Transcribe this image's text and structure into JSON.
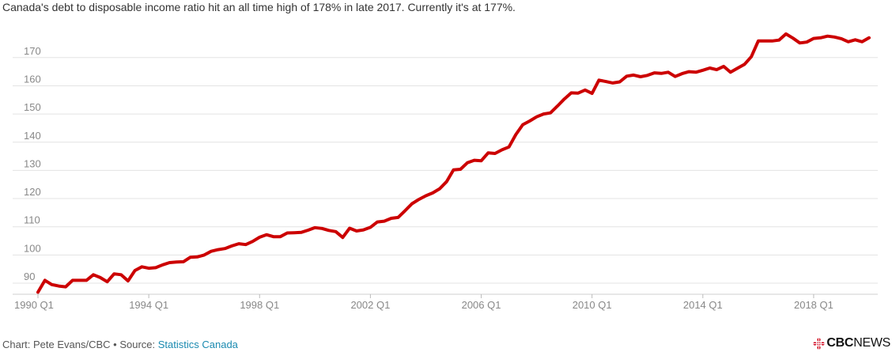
{
  "chart_title": "Canada's debt to disposable income ratio hit an all time high of 178% in late 2017. Currently it's at 177%.",
  "footer": {
    "prefix": "Chart: Pete Evans/CBC • Source: ",
    "source_link": "Statistics Canada"
  },
  "logo": {
    "cbc": "CBC",
    "news": "NEWS"
  },
  "colors": {
    "line": "#cc0000",
    "grid": "#e3e3e3",
    "axis_text": "#888888",
    "link": "#1a8ab0"
  },
  "chart_data": {
    "type": "line",
    "title": "Canada's debt to disposable income ratio hit an all time high of 178% in late 2017. Currently it's at 177%.",
    "xlabel": "",
    "ylabel": "",
    "ylim": [
      85,
      180
    ],
    "y_ticks": [
      90,
      100,
      110,
      120,
      130,
      140,
      150,
      160,
      170
    ],
    "x_ticks": [
      "1990 Q1",
      "1994 Q1",
      "1998 Q1",
      "2002 Q1",
      "2006 Q1",
      "2010 Q1",
      "2014 Q1",
      "2018 Q1"
    ],
    "grid": true,
    "series": [
      {
        "start": "1990 Q1",
        "frequency": "quarterly",
        "values": [
          86.8,
          91.0,
          89.5,
          89.0,
          88.7,
          91.0,
          91.0,
          91.0,
          93.0,
          92.0,
          90.5,
          93.3,
          93.0,
          90.8,
          94.5,
          95.8,
          95.3,
          95.5,
          96.5,
          97.3,
          97.5,
          97.6,
          99.2,
          99.3,
          100.0,
          101.3,
          101.9,
          102.3,
          103.2,
          104.0,
          103.7,
          104.8,
          106.3,
          107.2,
          106.5,
          106.5,
          107.8,
          107.9,
          108.0,
          108.8,
          109.7,
          109.4,
          108.7,
          108.3,
          106.2,
          109.5,
          108.5,
          108.9,
          109.8,
          111.7,
          112.0,
          113.0,
          113.3,
          115.7,
          118.2,
          119.7,
          121.0,
          122.0,
          123.5,
          126.0,
          130.2,
          130.4,
          132.7,
          133.6,
          133.4,
          136.2,
          136.0,
          137.3,
          138.3,
          142.7,
          146.2,
          147.5,
          149.0,
          150.0,
          150.4,
          152.8,
          155.3,
          157.5,
          157.4,
          158.5,
          157.3,
          162.0,
          161.5,
          161.0,
          161.4,
          163.4,
          163.8,
          163.2,
          163.7,
          164.6,
          164.4,
          164.8,
          163.3,
          164.3,
          165.0,
          164.8,
          165.5,
          166.3,
          165.7,
          166.9,
          164.8,
          166.2,
          167.6,
          170.3,
          175.9,
          175.9,
          175.9,
          176.2,
          178.4,
          176.9,
          175.2,
          175.5,
          176.8,
          177.0,
          177.6,
          177.3,
          176.7,
          175.6,
          176.3,
          175.6,
          177.0
        ]
      }
    ]
  }
}
